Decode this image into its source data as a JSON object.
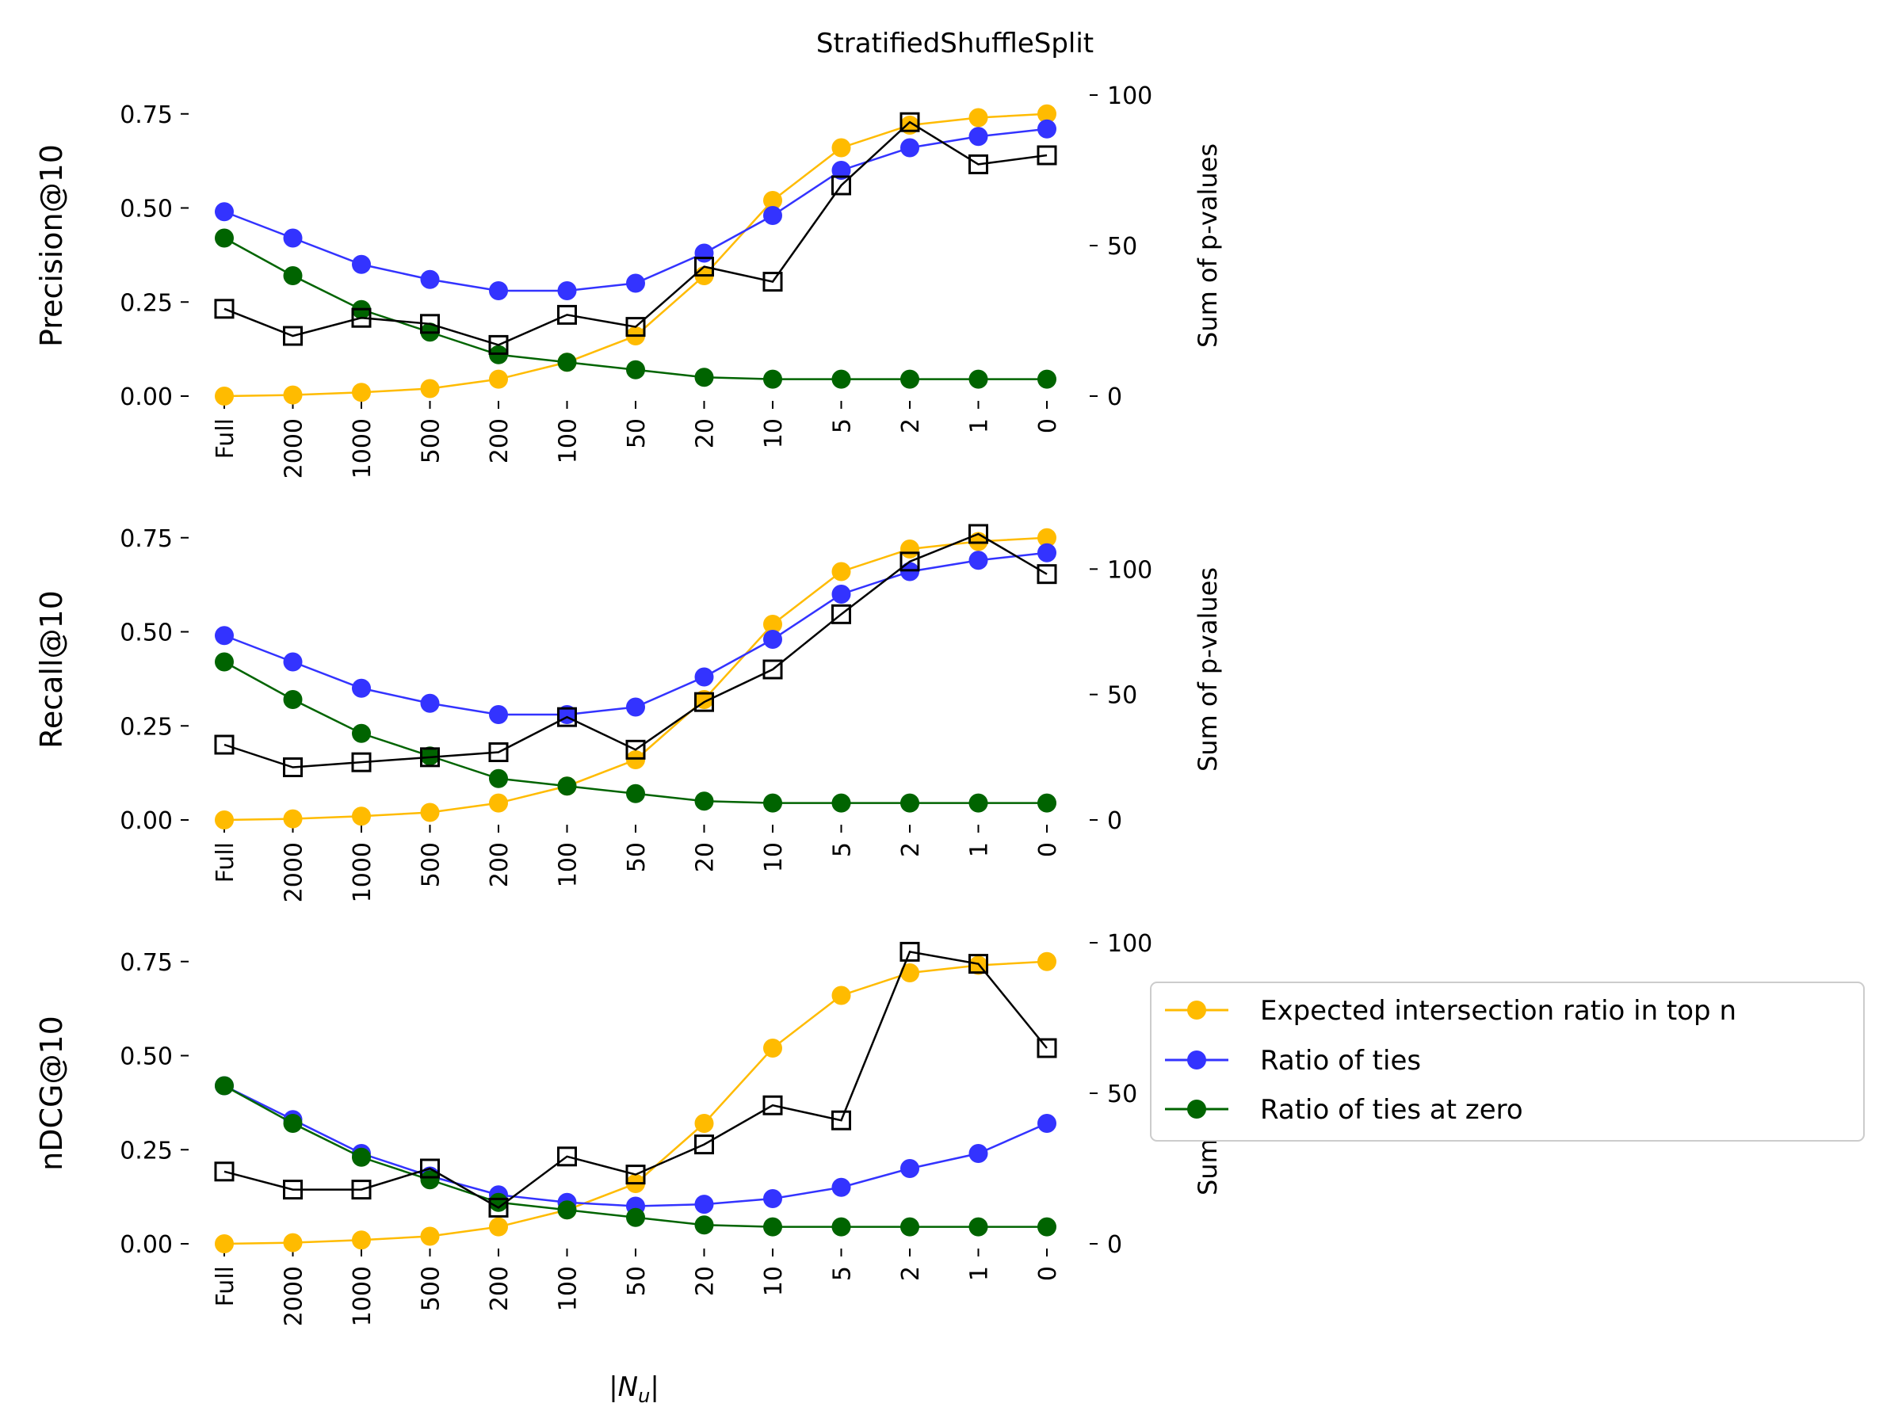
{
  "title": "StratifiedShuffleSplit",
  "xlabel": "|N_u|",
  "y2label": "Sum of p-values",
  "categories": [
    "Full",
    "2000",
    "1000",
    "500",
    "200",
    "100",
    "50",
    "20",
    "10",
    "5",
    "2",
    "1",
    "0"
  ],
  "legend": {
    "entries": [
      "Expected intersection ratio in top n",
      "Ratio of ties",
      "Ratio of ties at zero"
    ]
  },
  "colors": {
    "expected": "#ffbb00",
    "ties": "#3333ff",
    "ties_zero": "#006400",
    "pvalues": "#000000"
  },
  "chart_data": [
    {
      "type": "line",
      "ylabel": "Precision@10",
      "y2label": "Sum of p-values",
      "ylim": [
        0,
        0.8
      ],
      "y2lim": [
        0,
        100
      ],
      "yticks": [
        "0.00",
        "0.25",
        "0.50",
        "0.75"
      ],
      "y2ticks": [
        "0",
        "50",
        "100"
      ],
      "series": [
        {
          "name": "Expected intersection ratio in top n",
          "values": [
            0.0,
            0.003,
            0.01,
            0.02,
            0.045,
            0.09,
            0.16,
            0.32,
            0.52,
            0.66,
            0.72,
            0.74,
            0.75
          ]
        },
        {
          "name": "Ratio of ties",
          "values": [
            0.49,
            0.42,
            0.35,
            0.31,
            0.28,
            0.28,
            0.3,
            0.38,
            0.48,
            0.6,
            0.66,
            0.69,
            0.71
          ]
        },
        {
          "name": "Ratio of ties at zero",
          "values": [
            0.42,
            0.32,
            0.23,
            0.17,
            0.11,
            0.09,
            0.07,
            0.05,
            0.045,
            0.045,
            0.045,
            0.045,
            0.045
          ]
        }
      ],
      "pvalues": [
        29,
        20,
        26,
        24,
        17,
        27,
        23,
        43,
        38,
        70,
        91,
        77,
        80
      ]
    },
    {
      "type": "line",
      "ylabel": "Recall@10",
      "y2label": "Sum of p-values",
      "ylim": [
        0,
        0.8
      ],
      "y2lim": [
        0,
        120
      ],
      "yticks": [
        "0.00",
        "0.25",
        "0.50",
        "0.75"
      ],
      "y2ticks": [
        "0",
        "50",
        "100"
      ],
      "series": [
        {
          "name": "Expected intersection ratio in top n",
          "values": [
            0.0,
            0.003,
            0.01,
            0.02,
            0.045,
            0.09,
            0.16,
            0.32,
            0.52,
            0.66,
            0.72,
            0.74,
            0.75
          ]
        },
        {
          "name": "Ratio of ties",
          "values": [
            0.49,
            0.42,
            0.35,
            0.31,
            0.28,
            0.28,
            0.3,
            0.38,
            0.48,
            0.6,
            0.66,
            0.69,
            0.71
          ]
        },
        {
          "name": "Ratio of ties at zero",
          "values": [
            0.42,
            0.32,
            0.23,
            0.17,
            0.11,
            0.09,
            0.07,
            0.05,
            0.045,
            0.045,
            0.045,
            0.045,
            0.045
          ]
        }
      ],
      "pvalues": [
        30,
        21,
        23,
        25,
        27,
        41,
        28,
        47,
        60,
        82,
        103,
        114,
        98
      ]
    },
    {
      "type": "line",
      "ylabel": "nDCG@10",
      "y2label": "Sum of p-values",
      "ylim": [
        0,
        0.8
      ],
      "y2lim": [
        0,
        100
      ],
      "yticks": [
        "0.00",
        "0.25",
        "0.50",
        "0.75"
      ],
      "y2ticks": [
        "0",
        "50",
        "100"
      ],
      "series": [
        {
          "name": "Expected intersection ratio in top n",
          "values": [
            0.0,
            0.003,
            0.01,
            0.02,
            0.045,
            0.09,
            0.16,
            0.32,
            0.52,
            0.66,
            0.72,
            0.74,
            0.75
          ]
        },
        {
          "name": "Ratio of ties",
          "values": [
            0.42,
            0.33,
            0.24,
            0.18,
            0.13,
            0.11,
            0.1,
            0.105,
            0.12,
            0.15,
            0.2,
            0.24,
            0.32
          ]
        },
        {
          "name": "Ratio of ties at zero",
          "values": [
            0.42,
            0.32,
            0.23,
            0.17,
            0.11,
            0.09,
            0.07,
            0.05,
            0.045,
            0.045,
            0.045,
            0.045,
            0.045
          ]
        }
      ],
      "pvalues": [
        24,
        18,
        18,
        25,
        12,
        29,
        23,
        33,
        46,
        41,
        97,
        93,
        65
      ]
    }
  ]
}
